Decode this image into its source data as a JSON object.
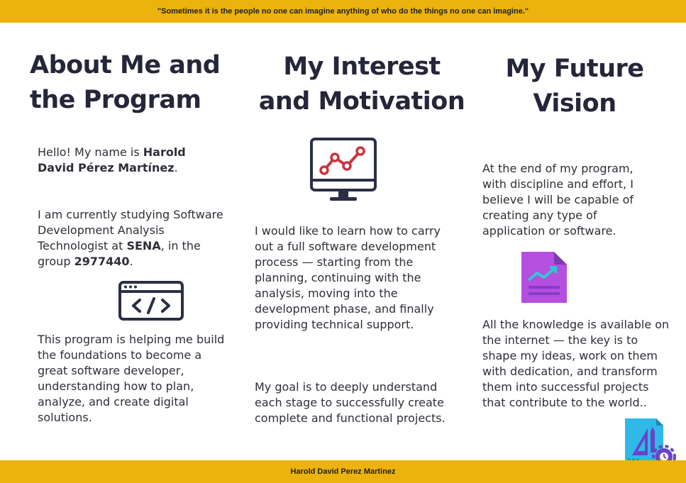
{
  "header": {
    "quote": "\"Sometimes it is the people no one can imagine anything of who do the things no one can imagine.\""
  },
  "column1": {
    "title": "About Me and the Program",
    "p1": {
      "intro": "Hello! My name is ",
      "name": "Harold David Pérez Martínez",
      "end": "."
    },
    "p2": {
      "a": "I am currently studying Software Development Analysis Technologist at ",
      "sena": "SENA",
      "b": ", in the group ",
      "group": "2977440",
      "c": "."
    },
    "icon": "code-window-icon",
    "p3": "This program is helping me build the foundations to become a great software developer, understanding how to plan, analyze, and create digital solutions."
  },
  "column2": {
    "title": "My Interest and Motivation",
    "icon": "monitor-chart-icon",
    "p1": "I would like to learn how to carry out a full software development process — starting from the planning, continuing with the analysis, moving into the development phase, and finally providing technical support.",
    "p2": "My goal is to deeply understand each stage to successfully create complete and functional projects."
  },
  "column3": {
    "title": "My Future Vision",
    "p1": "At the end of my program, with discipline and effort, I believe I will be capable of creating any type of application or software.",
    "icon": "document-chart-icon",
    "p2": "All the knowledge is available on the internet — the key is to shape my ideas, work on them with dedication, and transform them into successful projects that contribute to the world..",
    "corner_icon": "design-tools-icon"
  },
  "footer": {
    "author": "Harold David Perez Martinez"
  },
  "colors": {
    "band": "#ecb20d",
    "title": "#26263a",
    "chart_red": "#c8353d",
    "doc_purple": "#b44fe0",
    "tools_blue": "#2fb8e8"
  }
}
